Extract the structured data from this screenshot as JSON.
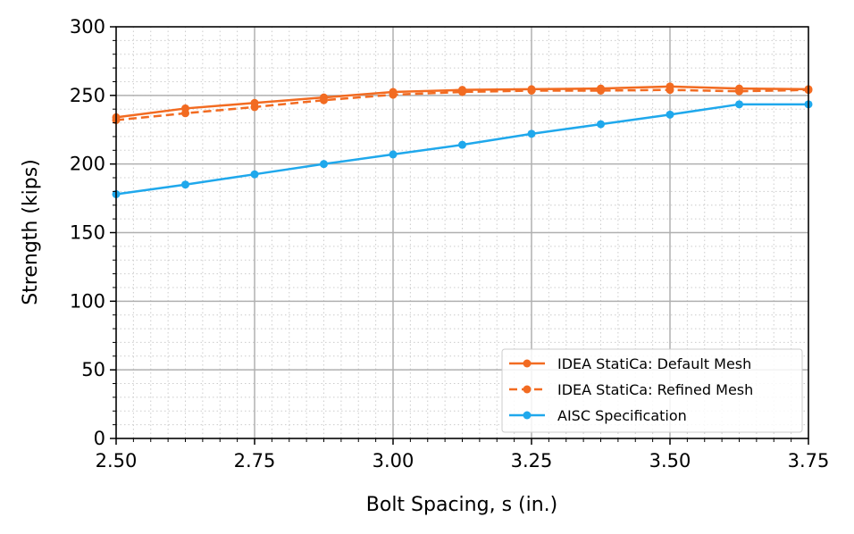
{
  "chart_data": {
    "type": "line",
    "title": "",
    "xlabel": "Bolt Spacing, s (in.)",
    "ylabel": "Strength (kips)",
    "xlim": [
      2.5,
      3.75
    ],
    "ylim": [
      0,
      300
    ],
    "xticks": [
      "2.50",
      "2.75",
      "3.00",
      "3.25",
      "3.50",
      "3.75"
    ],
    "yticks": [
      "0",
      "50",
      "100",
      "150",
      "200",
      "250",
      "300"
    ],
    "grid": "major solid + minor dotted",
    "legend": "lower-right",
    "x": [
      2.5,
      2.625,
      2.75,
      2.875,
      3.0,
      3.125,
      3.25,
      3.375,
      3.5,
      3.625,
      3.75
    ],
    "series": [
      {
        "name": "IDEA StatiCa: Default Mesh",
        "color": "#f26b21",
        "style": "solid",
        "values": [
          234,
          240.5,
          244.5,
          248.5,
          252.5,
          254,
          254.5,
          255,
          256.5,
          255,
          254.5
        ]
      },
      {
        "name": "IDEA StatiCa: Refined Mesh",
        "color": "#f26b21",
        "style": "dashed",
        "values": [
          232,
          237,
          241.5,
          246.5,
          250.5,
          252.5,
          253.5,
          253.5,
          254,
          253,
          254
        ]
      },
      {
        "name": "AISC Specification",
        "color": "#1fa8ec",
        "style": "solid",
        "values": [
          178,
          185,
          192.5,
          200,
          207,
          214,
          222,
          229,
          236,
          243.5,
          243.5
        ]
      }
    ]
  }
}
